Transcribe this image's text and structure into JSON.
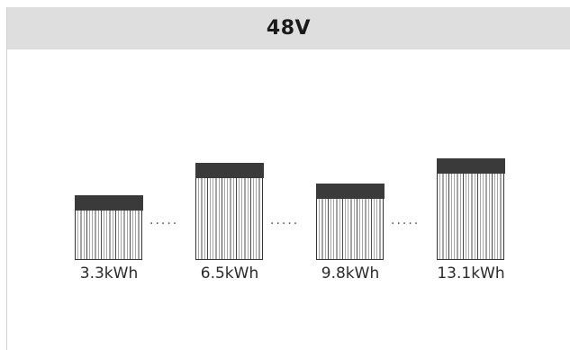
{
  "header": {
    "title": "48V"
  },
  "separator": ".....",
  "batteries": [
    {
      "label": "3.3kWh"
    },
    {
      "label": "6.5kWh"
    },
    {
      "label": "9.8kWh"
    },
    {
      "label": "13.1kWh"
    }
  ],
  "colors": {
    "header_bg": "#dedede",
    "module_cap": "#3a3a3a",
    "module_border": "#333333"
  }
}
